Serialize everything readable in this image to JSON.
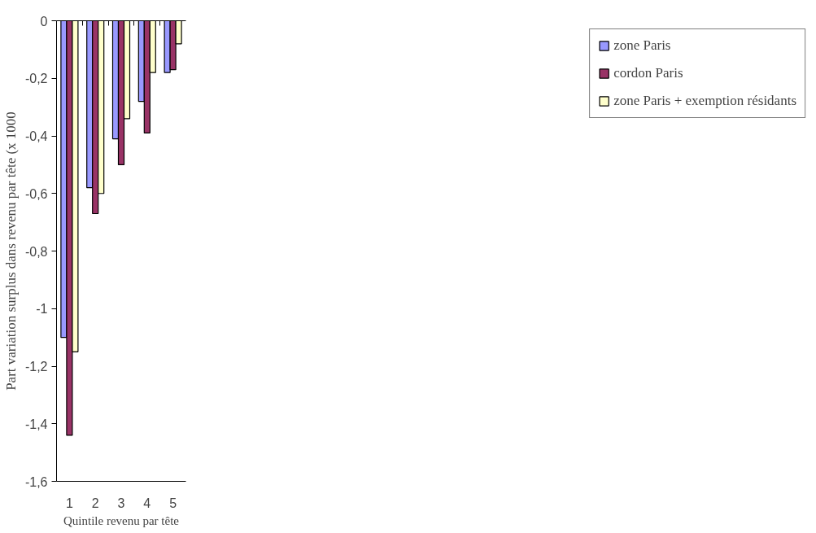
{
  "chart_data": {
    "type": "bar",
    "xlabel": "Quintile revenu par tête",
    "ylabel": "Part variation surplus dans revenu par tête (x 1000",
    "categories": [
      "1",
      "2",
      "3",
      "4",
      "5"
    ],
    "series": [
      {
        "name": "zone Paris",
        "color": "#9999ff",
        "values": [
          -1.1,
          -0.58,
          -0.41,
          -0.28,
          -0.18
        ]
      },
      {
        "name": "cordon Paris",
        "color": "#993366",
        "values": [
          -1.44,
          -0.67,
          -0.5,
          -0.39,
          -0.17
        ]
      },
      {
        "name": "zone Paris + exemption résidants",
        "color": "#ffffcc",
        "values": [
          -1.15,
          -0.6,
          -0.34,
          -0.18,
          -0.08
        ]
      }
    ],
    "ylim": [
      -1.6,
      0
    ],
    "yticks": [
      {
        "value": -1.6,
        "label": "-1,6"
      },
      {
        "value": -1.4,
        "label": "-1,4"
      },
      {
        "value": -1.2,
        "label": "-1,2"
      },
      {
        "value": -1,
        "label": "-1"
      },
      {
        "value": -0.8,
        "label": "-0,8"
      },
      {
        "value": -0.6,
        "label": "-0,6"
      },
      {
        "value": -0.4,
        "label": "-0,4"
      },
      {
        "value": -0.2,
        "label": "-0,2"
      },
      {
        "value": 0,
        "label": "0"
      }
    ],
    "grid": false,
    "legend": "right"
  }
}
